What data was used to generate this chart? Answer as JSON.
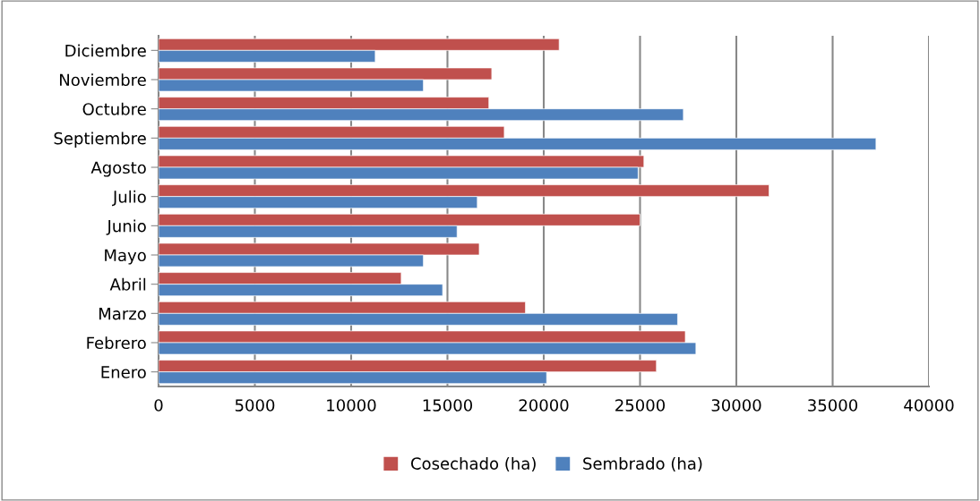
{
  "chart_data": {
    "type": "bar",
    "orientation": "horizontal",
    "categories": [
      "Diciembre",
      "Noviembre",
      "Octubre",
      "Septiembre",
      "Agosto",
      "Julio",
      "Junio",
      "Mayo",
      "Abril",
      "Marzo",
      "Febrero",
      "Enero"
    ],
    "series": [
      {
        "name": "Cosechado (ha)",
        "color": "#c0504d",
        "values": [
          20800,
          17300,
          17150,
          17950,
          25200,
          31700,
          25000,
          16650,
          12600,
          19050,
          27350,
          25850
        ]
      },
      {
        "name": "Sembrado (ha)",
        "color": "#4f81bd",
        "values": [
          11250,
          13750,
          27250,
          37250,
          24900,
          16550,
          15500,
          13750,
          14750,
          26950,
          27900,
          20150
        ]
      }
    ],
    "xlim": [
      0,
      40000
    ],
    "xticks": [
      0,
      5000,
      10000,
      15000,
      20000,
      25000,
      30000,
      35000,
      40000
    ],
    "grid": "x",
    "legend": "bottom"
  }
}
